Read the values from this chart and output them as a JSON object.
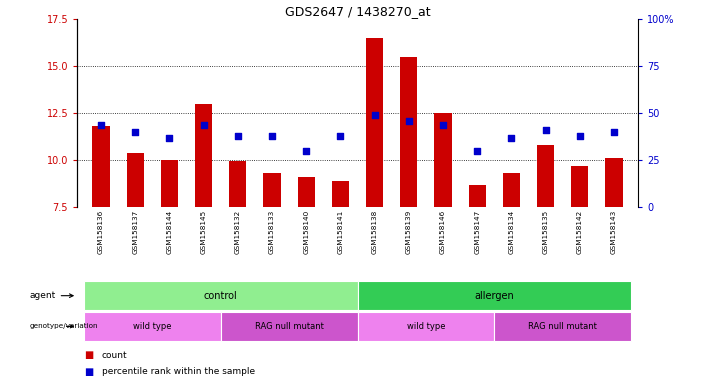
{
  "title": "GDS2647 / 1438270_at",
  "samples": [
    "GSM158136",
    "GSM158137",
    "GSM158144",
    "GSM158145",
    "GSM158132",
    "GSM158133",
    "GSM158140",
    "GSM158141",
    "GSM158138",
    "GSM158139",
    "GSM158146",
    "GSM158147",
    "GSM158134",
    "GSM158135",
    "GSM158142",
    "GSM158143"
  ],
  "bar_values": [
    11.8,
    10.4,
    10.0,
    13.0,
    9.95,
    9.35,
    9.1,
    8.9,
    16.5,
    15.5,
    12.5,
    8.7,
    9.3,
    10.8,
    9.7,
    10.1
  ],
  "pct_values": [
    44,
    40,
    37,
    44,
    38,
    38,
    30,
    38,
    49,
    46,
    44,
    30,
    37,
    41,
    38,
    40
  ],
  "bar_color": "#cc0000",
  "pct_color": "#0000cc",
  "ylim_left": [
    7.5,
    17.5
  ],
  "ylim_right": [
    0,
    100
  ],
  "yticks_left": [
    7.5,
    10.0,
    12.5,
    15.0,
    17.5
  ],
  "yticks_right": [
    0,
    25,
    50,
    75,
    100
  ],
  "ytick_labels_right": [
    "0",
    "25",
    "50",
    "75",
    "100%"
  ],
  "agent_groups": [
    {
      "label": "control",
      "start": 0,
      "end": 8,
      "color": "#90ee90"
    },
    {
      "label": "allergen",
      "start": 8,
      "end": 16,
      "color": "#33cc55"
    }
  ],
  "genotype_groups": [
    {
      "label": "wild type",
      "start": 0,
      "end": 4,
      "color": "#ee82ee"
    },
    {
      "label": "RAG null mutant",
      "start": 4,
      "end": 8,
      "color": "#cc55cc"
    },
    {
      "label": "wild type",
      "start": 8,
      "end": 12,
      "color": "#ee82ee"
    },
    {
      "label": "RAG null mutant",
      "start": 12,
      "end": 16,
      "color": "#cc55cc"
    }
  ],
  "bar_width": 0.5,
  "tick_area_color": "#c8c8c8",
  "background_color": "#ffffff",
  "grid_yticks": [
    10.0,
    12.5,
    15.0
  ]
}
